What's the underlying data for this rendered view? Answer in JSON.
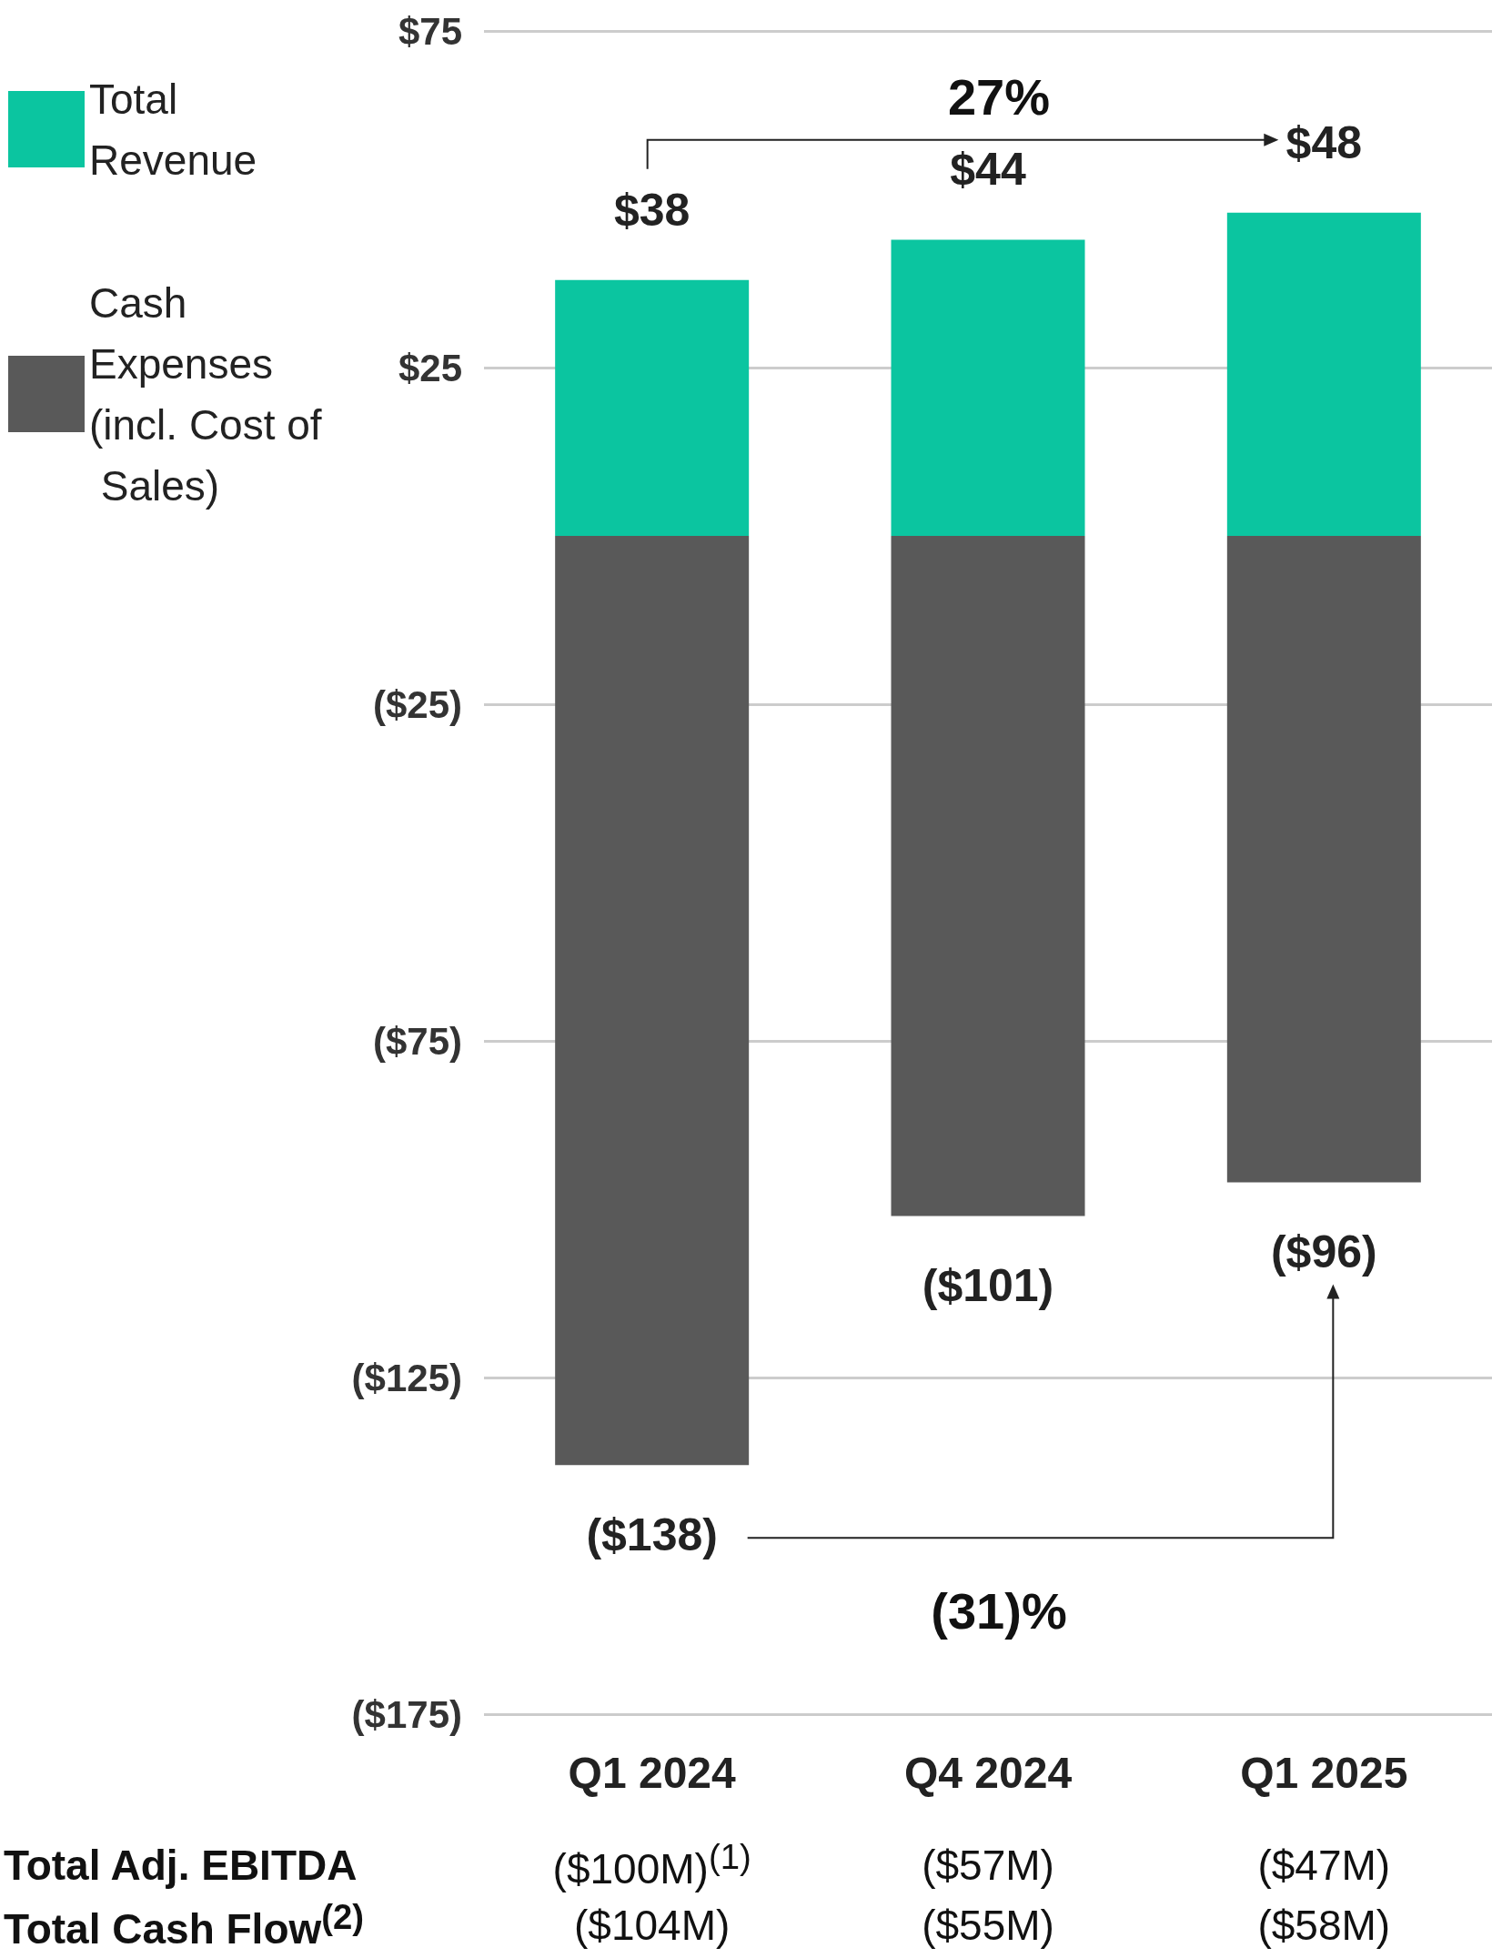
{
  "chart_data": {
    "type": "bar",
    "stacked": true,
    "categories": [
      "Q1 2024",
      "Q4 2024",
      "Q1 2025"
    ],
    "series": [
      {
        "name": "Total Revenue",
        "color": "#0bc5a0",
        "values": [
          38,
          44,
          48
        ],
        "value_labels": [
          "$38",
          "$44",
          "$48"
        ]
      },
      {
        "name": "Cash Expenses (incl. Cost of Sales)",
        "color": "#595959",
        "values": [
          -138,
          -101,
          -96
        ],
        "value_labels": [
          "($138)",
          "($101)",
          "($96)"
        ]
      }
    ],
    "ylim": [
      -175,
      75
    ],
    "yticks": [
      {
        "value": -175,
        "label": "($175)"
      },
      {
        "value": -125,
        "label": "($125)"
      },
      {
        "value": -75,
        "label": "($75)"
      },
      {
        "value": -25,
        "label": "($25)"
      },
      {
        "value": 25,
        "label": "$25"
      },
      {
        "value": 75,
        "label": "$75"
      }
    ],
    "grid": "y",
    "legend": "top left",
    "annotations": [
      "27%",
      "(31)%",
      "Total Adj. EBITDA",
      "($100M)$^{(1)}$",
      "($57M)",
      "($47M)",
      "Total Cash Flow$^{(2)}$",
      "($104M)",
      "($55M)",
      "($58M)"
    ]
  }
}
